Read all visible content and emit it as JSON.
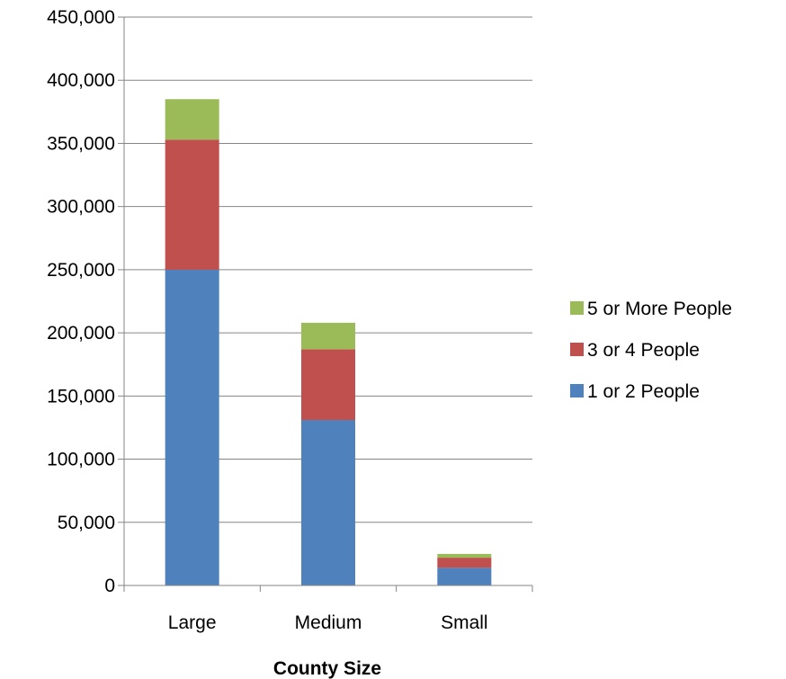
{
  "chart_data": {
    "type": "bar",
    "stacked": true,
    "title": "",
    "xlabel": "County Size",
    "ylabel": "",
    "categories": [
      "Large",
      "Medium",
      "Small"
    ],
    "ylim": [
      0,
      450000
    ],
    "yticks": [
      0,
      50000,
      100000,
      150000,
      200000,
      250000,
      300000,
      350000,
      400000,
      450000
    ],
    "ytick_labels": [
      "0",
      "50,000",
      "100,000",
      "150,000",
      "200,000",
      "250,000",
      "300,000",
      "350,000",
      "400,000",
      "450,000"
    ],
    "grid": true,
    "legend_position": "right",
    "series": [
      {
        "name": "1 or 2 People",
        "color": "#4f81bd",
        "values": [
          250000,
          131000,
          14000
        ]
      },
      {
        "name": "3 or 4 People",
        "color": "#c0504d",
        "values": [
          103000,
          56000,
          8000
        ]
      },
      {
        "name": "5 or More People",
        "color": "#9bbb59",
        "values": [
          32000,
          21000,
          3000
        ]
      }
    ]
  }
}
